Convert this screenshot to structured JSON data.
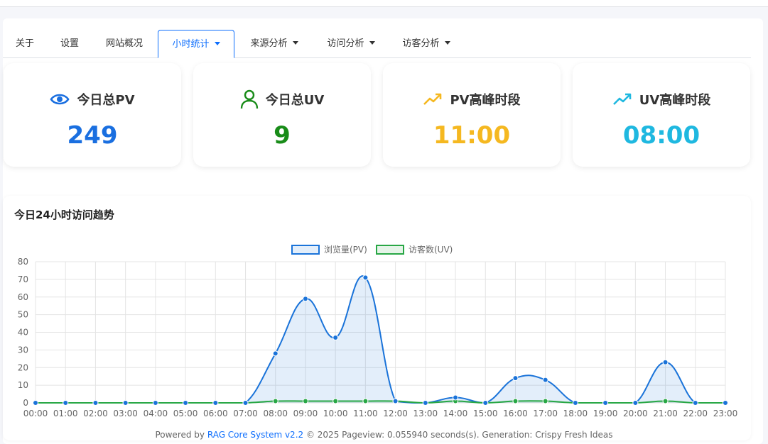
{
  "tabs": [
    {
      "label": "关于",
      "dropdown": false,
      "active": false
    },
    {
      "label": "设置",
      "dropdown": false,
      "active": false
    },
    {
      "label": "网站概况",
      "dropdown": false,
      "active": false
    },
    {
      "label": "小时统计",
      "dropdown": true,
      "active": true
    },
    {
      "label": "来源分析",
      "dropdown": true,
      "active": false
    },
    {
      "label": "访问分析",
      "dropdown": true,
      "active": false
    },
    {
      "label": "访客分析",
      "dropdown": true,
      "active": false
    }
  ],
  "cards": [
    {
      "icon": "eye-icon",
      "title": "今日总PV",
      "value": "249",
      "color": "#1a6fe0"
    },
    {
      "icon": "user-icon",
      "title": "今日总UV",
      "value": "9",
      "color": "#198c19"
    },
    {
      "icon": "trend-up-icon",
      "title": "PV高峰时段",
      "value": "11:00",
      "color": "#f5b820"
    },
    {
      "icon": "trend-up-icon",
      "title": "UV高峰时段",
      "value": "08:00",
      "color": "#1fb8e0"
    }
  ],
  "chart_section": {
    "title": "今日24小时访问趋势"
  },
  "chart_data": {
    "type": "line",
    "categories": [
      "00:00",
      "01:00",
      "02:00",
      "03:00",
      "04:00",
      "05:00",
      "06:00",
      "07:00",
      "08:00",
      "09:00",
      "10:00",
      "11:00",
      "12:00",
      "13:00",
      "14:00",
      "15:00",
      "16:00",
      "17:00",
      "18:00",
      "19:00",
      "20:00",
      "21:00",
      "22:00",
      "23:00"
    ],
    "series": [
      {
        "name": "浏览量(PV)",
        "values": [
          0,
          0,
          0,
          0,
          0,
          0,
          0,
          0,
          28,
          59,
          37,
          71,
          1,
          0,
          3,
          0,
          14,
          13,
          0,
          0,
          0,
          23,
          0,
          0
        ],
        "color": "#1a73d9",
        "fill": "rgba(26,115,217,0.12)"
      },
      {
        "name": "访客数(UV)",
        "values": [
          0,
          0,
          0,
          0,
          0,
          0,
          0,
          0,
          1,
          1,
          1,
          1,
          1,
          0,
          1,
          0,
          1,
          1,
          0,
          0,
          0,
          1,
          0,
          0
        ],
        "color": "#28a745",
        "fill": "rgba(40,167,69,0.12)"
      }
    ],
    "yticks": [
      0,
      10,
      20,
      30,
      40,
      50,
      60,
      70,
      80
    ],
    "ylim": [
      0,
      80
    ],
    "grid": true,
    "legend": "top-center",
    "smooth": true,
    "fill": true
  },
  "footer": {
    "prefix": "Powered by ",
    "link": "RAG Core System v2.2",
    "rest": " © 2025 Pageview: 0.055940 seconds(s). Generation: Crispy Fresh Ideas"
  }
}
